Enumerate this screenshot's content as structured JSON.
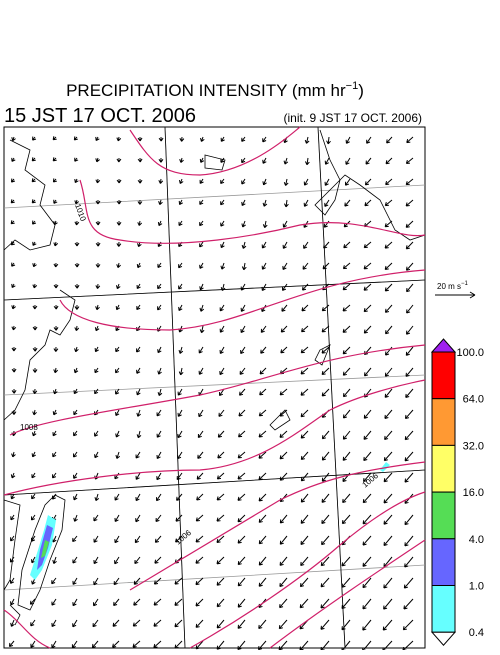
{
  "header": {
    "title": "PRECIPITATION INTENSITY (mm hr",
    "title_exponent": "−1",
    "title_close": ")",
    "valid_time": "15 JST 17 OCT. 2006",
    "init_time": "(init. 9 JST 17 OCT. 2006)"
  },
  "map": {
    "isobar_labels": [
      "1010",
      "1008",
      "1006",
      "1006"
    ]
  },
  "wind_scale": {
    "value_label": "20 m s",
    "exponent": "−1"
  },
  "colorbar": {
    "labels": [
      "100.0",
      "64.0",
      "32.0",
      "16.0",
      "4.0",
      "1.0",
      "0.4"
    ],
    "colors": [
      "#ff0000",
      "#ff9933",
      "#ffff66",
      "#55dd55",
      "#6666ff",
      "#66ffff"
    ],
    "over_color": "#a020f0",
    "under_color": "#ffffff"
  }
}
